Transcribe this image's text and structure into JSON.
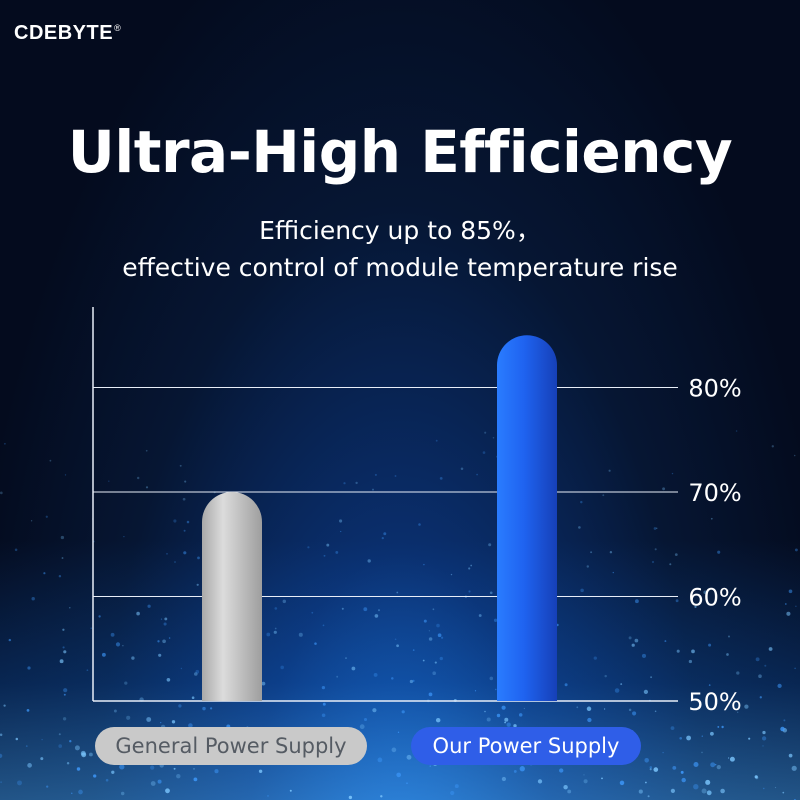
{
  "brand": {
    "name": "CDEBYTE",
    "mark": "®"
  },
  "title": "Ultra-High Efficiency",
  "subtitle": {
    "line1": "Efficiency up to 85%，",
    "line2": "effective control of module temperature rise"
  },
  "colors": {
    "background": "#061633",
    "general_bar": "#c4c4c4",
    "our_bar": "#1f63f0",
    "general_pill": "#c9c9c9",
    "our_pill": "#2f5ee8"
  },
  "chart_data": {
    "type": "bar",
    "categories": [
      "General Power Supply",
      "Our Power Supply"
    ],
    "values": [
      70,
      85
    ],
    "yticks": [
      "50%",
      "60%",
      "70%",
      "80%"
    ],
    "ylim": [
      50,
      86
    ],
    "y_axis_position": "right",
    "grid": true,
    "legend": "none"
  }
}
